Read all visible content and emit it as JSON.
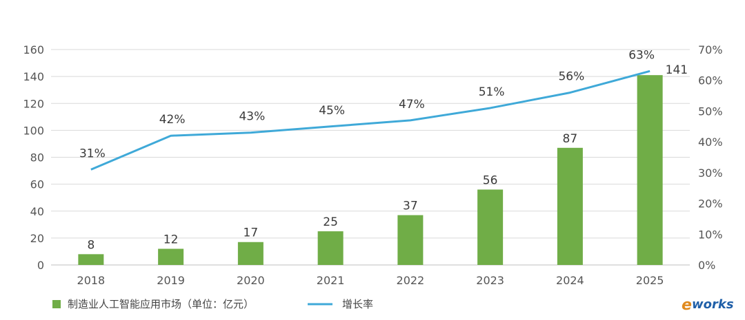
{
  "chart_data": {
    "type": "bar+line",
    "categories": [
      "2018",
      "2019",
      "2020",
      "2021",
      "2022",
      "2023",
      "2024",
      "2025"
    ],
    "series": [
      {
        "name": "制造业人工智能应用市场（单位：亿元）",
        "type": "bar",
        "axis": "left",
        "values": [
          8,
          12,
          17,
          25,
          37,
          56,
          87,
          141
        ],
        "labels": [
          "8",
          "12",
          "17",
          "25",
          "37",
          "56",
          "87",
          "141"
        ],
        "color": "#70ad47"
      },
      {
        "name": "增长率",
        "type": "line",
        "axis": "right",
        "values": [
          31,
          42,
          43,
          45,
          47,
          51,
          56,
          63
        ],
        "labels": [
          "31%",
          "42%",
          "43%",
          "45%",
          "47%",
          "51%",
          "56%",
          "63%"
        ],
        "color": "#3fa9d8"
      }
    ],
    "y_left": {
      "min": 0,
      "max": 160,
      "ticks": [
        "0",
        "20",
        "40",
        "60",
        "80",
        "100",
        "120",
        "140",
        "160"
      ]
    },
    "y_right": {
      "min": 0,
      "max": 70,
      "ticks": [
        "0%",
        "10%",
        "20%",
        "30%",
        "40%",
        "50%",
        "60%",
        "70%"
      ]
    },
    "grid": true,
    "legend_position": "bottom-left"
  },
  "watermark": {
    "e": "e",
    "rest": "works"
  }
}
